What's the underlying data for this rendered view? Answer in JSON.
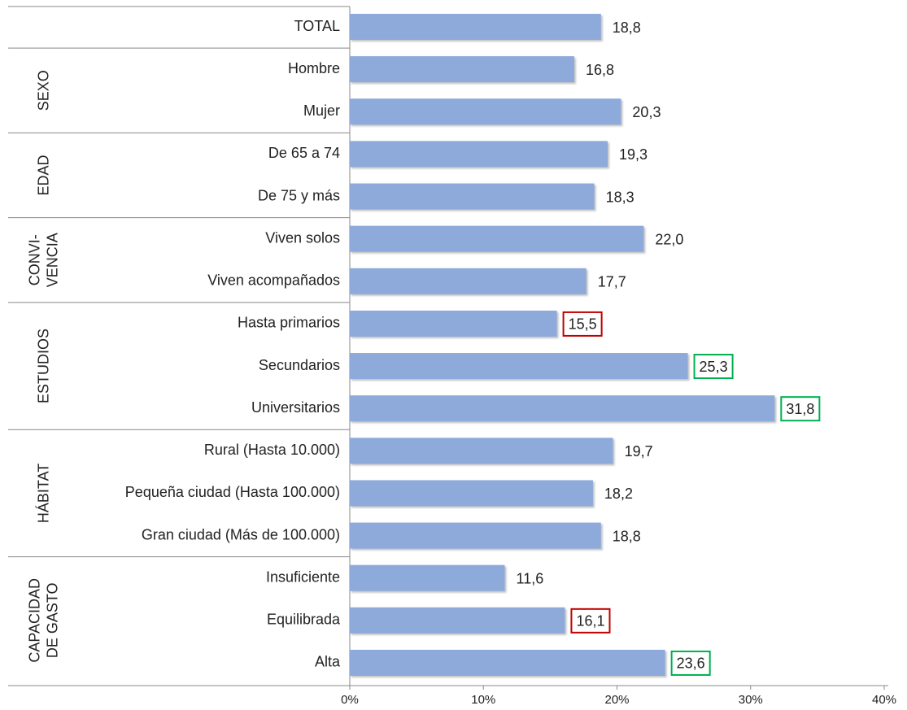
{
  "chart_data": {
    "type": "bar",
    "orientation": "horizontal",
    "categories": [
      "TOTAL",
      "Hombre",
      "Mujer",
      "De 65 a 74",
      "De 75 y más",
      "Viven solos",
      "Viven acompañados",
      "Hasta primarios",
      "Secundarios",
      "Universitarios",
      "Rural (Hasta 10.000)",
      "Pequeña ciudad (Hasta 100.000)",
      "Gran ciudad (Más de 100.000)",
      "Insuficiente",
      "Equilibrada",
      "Alta"
    ],
    "values": [
      18.8,
      16.8,
      20.3,
      19.3,
      18.3,
      22.0,
      17.7,
      15.5,
      25.3,
      31.8,
      19.7,
      18.2,
      18.8,
      11.6,
      16.1,
      23.6
    ],
    "value_labels": [
      "18,8",
      "16,8",
      "20,3",
      "19,3",
      "18,3",
      "22,0",
      "17,7",
      "15,5",
      "25,3",
      "31,8",
      "19,7",
      "18,2",
      "18,8",
      "11,6",
      "16,1",
      "23,6"
    ],
    "label_box_colors": [
      null,
      null,
      null,
      null,
      null,
      null,
      null,
      "#c00000",
      "#00b050",
      "#00b050",
      null,
      null,
      null,
      null,
      "#c00000",
      "#00b050"
    ],
    "groups": [
      {
        "lines": [],
        "size": 1
      },
      {
        "lines": [
          "SEXO"
        ],
        "size": 2
      },
      {
        "lines": [
          "EDAD"
        ],
        "size": 2
      },
      {
        "lines": [
          "CONVI-",
          "VENCIA"
        ],
        "size": 2
      },
      {
        "lines": [
          "ESTUDIOS"
        ],
        "size": 3
      },
      {
        "lines": [
          "HÁBITAT"
        ],
        "size": 3
      },
      {
        "lines": [
          "CAPACIDAD",
          "DE GASTO"
        ],
        "size": 3
      }
    ],
    "color": "#8eaadb",
    "xlim": [
      0,
      40
    ],
    "xticks": [
      {
        "value": 0,
        "label": "0%"
      },
      {
        "value": 10,
        "label": "10%"
      },
      {
        "value": 20,
        "label": "20%"
      },
      {
        "value": 30,
        "label": "30%"
      },
      {
        "value": 40,
        "label": "40%"
      }
    ]
  }
}
